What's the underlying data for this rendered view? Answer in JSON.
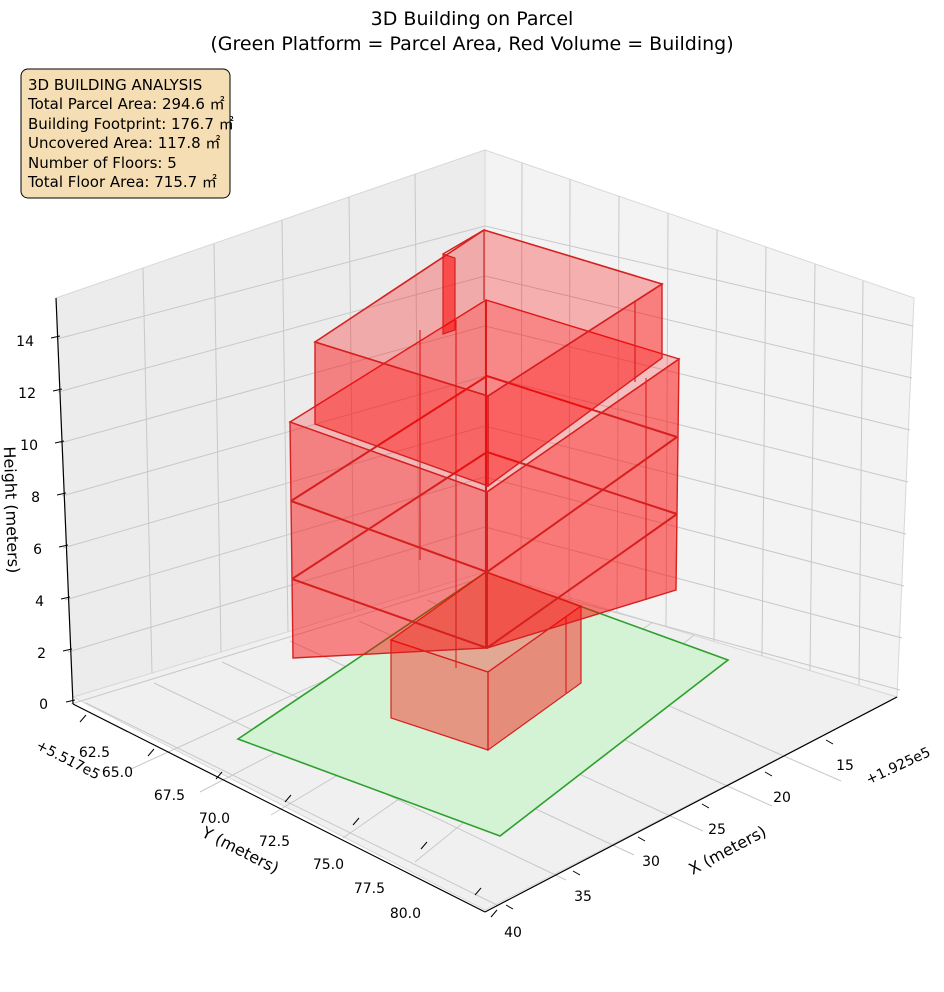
{
  "chart_data": {
    "type": "3d-block-diagram",
    "title": "3D Building on Parcel",
    "subtitle": "(Green Platform = Parcel Area, Red Volume = Building)",
    "xlabel": "X (meters)",
    "ylabel": "Y (meters)",
    "zlabel": "Height (meters)",
    "x_offset_label": "+1.925e5",
    "y_offset_label": "+5.517e5",
    "x_ticks": [
      "15",
      "20",
      "25",
      "30",
      "35",
      "40"
    ],
    "y_ticks": [
      "62.5",
      "65.0",
      "67.5",
      "70.0",
      "72.5",
      "75.0",
      "77.5",
      "80.0"
    ],
    "z_ticks": [
      "0",
      "2",
      "4",
      "6",
      "8",
      "10",
      "12",
      "14"
    ],
    "grid": true,
    "colors": {
      "parcel_fill": "#d4f2d4",
      "parcel_edge": "#2ca02c",
      "building_fill": "#ff0000",
      "building_edge": "#d62020",
      "info_box_fill": "#f5deb3"
    },
    "analysis_box": {
      "heading": "3D BUILDING ANALYSIS",
      "lines": [
        "Total Parcel Area: 294.6 ㎡",
        "Building Footprint: 176.7 ㎡",
        "Uncovered Area: 117.8 ㎡",
        "Number of Floors: 5",
        "Total Floor Area: 715.7 ㎡"
      ]
    },
    "parcel": {
      "area_m2": 294.6
    },
    "building": {
      "footprint_m2": 176.7,
      "floors": 5,
      "total_floor_area_m2": 715.7
    }
  }
}
